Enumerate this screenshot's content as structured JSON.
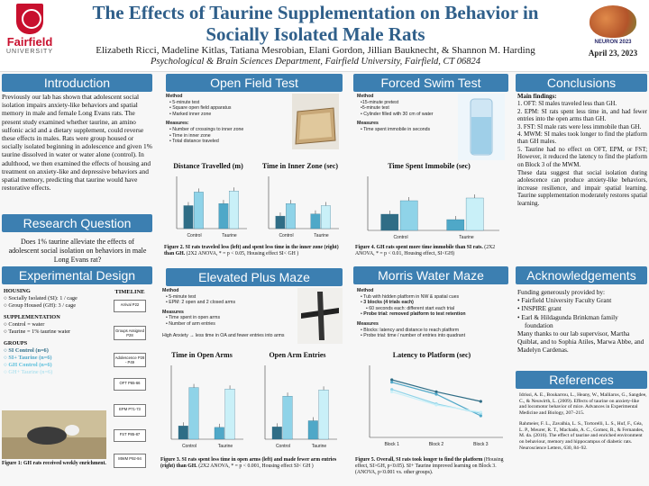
{
  "header": {
    "university": "Fairfield",
    "university_sub": "UNIVERSITY",
    "title": "The Effects of Taurine Supplementation on Behavior in Socially Isolated Male Rats",
    "authors": "Elizabeth Ricci, Madeline Kitlas, Tatiana Mesrobian, Elani Gordon, Jillian Bauknecht, & Shannon M. Harding",
    "department": "Psychological & Brain Sciences Department, Fairfield University, Fairfield, CT 06824",
    "conference": "NEURON 2023",
    "date": "April 23, 2023"
  },
  "introduction": {
    "heading": "Introduction",
    "text": "Previously our lab has shown that adolescent social isolation impairs anxiety-like behaviors and spatial memory in male and female Long Evans rats. The present study examined whether taurine, an amino sulfonic acid and a dietary supplement, could reverse these effects in males. Rats were group housed or socially isolated beginning in adolescence and given 1% taurine dissolved in water or water alone (control). In adulthood, we then examined the effects of housing and treatment on anxiety-like and depressive behaviors and spatial memory, predicting that taurine would have restorative effects."
  },
  "research_question": {
    "heading": "Research Question",
    "text": "Does 1% taurine alleviate the effects of adolescent social isolation on behaviors in male Long Evans rat?"
  },
  "experimental_design": {
    "heading": "Experimental Design",
    "housing_title": "HOUSING",
    "housing": [
      "Socially Isolated (SI): 1 / cage",
      "Group Housed (GH): 3 / cage"
    ],
    "supp_title": "SUPPLEMENTATION",
    "supp": [
      "Control = water",
      "Taurine = 1% taurine water"
    ],
    "groups_title": "GROUPS",
    "groups": [
      "SI Control (n=6)",
      "SI+ Taurine (n=6)",
      "GH Control (n=6)",
      "GH+ Taurine (n=6)"
    ],
    "timeline_title": "TIMELINE",
    "timeline": [
      "Arrival P22",
      "Groups Assigned P28",
      "Adolescence P28 - P49",
      "OFT P65-66",
      "EPM P71-73",
      "FST P85-87",
      "MWM P92-94"
    ],
    "caption": "Figure 1: GH rats received weekly enrichment."
  },
  "open_field": {
    "heading": "Open Field Test",
    "method_title": "Method",
    "method": [
      "5-minute test",
      "Square open field apparatus",
      "Marked inner zone"
    ],
    "measures_title": "Measures:",
    "measures": [
      "Number of crossings to inner zone",
      "Time in inner zone",
      "Total distance traveled"
    ],
    "chart1_title": "Distance Travelled (m)",
    "chart2_title": "Time in Inner Zone (sec)",
    "caption_bold": "Figure 2. SI rats traveled less (left) and spent less time in the inner zone (right) than GH.",
    "caption_rest": " (2X2 ANOVA, * = p < 0.05, Housing effect SI< GH )"
  },
  "forced_swim": {
    "heading": "Forced Swim Test",
    "method_title": "Method",
    "method": [
      "15-minute pretest",
      "5-minute test",
      "Cylinder filled with 30 cm of water"
    ],
    "measures_title": "Measures",
    "measures": [
      "Time spent immobile in seconds"
    ],
    "chart_title": "Time Spent Immobile (sec)",
    "caption_bold": "Figure 4. GH rats spent more time immobile than SI rats.",
    "caption_rest": " (2X2 ANOVA, * = p < 0.01, Housing effect, SI<GH)"
  },
  "conclusions": {
    "heading": "Conclusions",
    "main_title": "Main findings:",
    "findings": [
      "OFT: SI males traveled less than GH.",
      "EPM: SI rats spent less time in, and had fewer entries into the open arms than GH.",
      "FST: SI male rats were less immobile than GH.",
      "MWM: SI males took longer to find the platform than GH males.",
      "Taurine had no effect on OFT, EPM, or FST; However, it reduced the latency to find the platform on Block 3 of the MWM."
    ],
    "summary": "These data suggest that social isolation during adolescence can produce anxiety-like behaviors, increase resilience, and impair spatial learning. Taurine supplementation moderately restores spatial learning."
  },
  "epm": {
    "heading": "Elevated Plus Maze",
    "method_title": "Method",
    "method": [
      "5-minute test",
      "EPM: 2 open and 2 closed arms"
    ],
    "measures_title": "Measures",
    "measures": [
      "Time spent in open arms",
      "Number of arm entries"
    ],
    "note": "High Anxiety → less time in OA and fewer entries into arms",
    "chart1_title": "Time in Open Arms",
    "chart2_title": "Open Arm Entries",
    "caption_bold": "Figure 3. SI rats spent less time in open arms (left) and made fewer arm entries (right) than GH.",
    "caption_rest": " (2X2 ANOVA, * = p < 0.001, Housing effect SI< GH )"
  },
  "mwm": {
    "heading": "Morris Water Maze",
    "method_title": "Method",
    "method": [
      "Tub with hidden platform in NW & spatial cues",
      "3 blocks (4 trials each)",
      "60 seconds each: different start each trial",
      "Probe trial: removed platform to test retention"
    ],
    "measures_title": "Measures",
    "measures": [
      "Blocks: latency and distance to reach platform",
      "Probe trial: time / number of entries into quadrant"
    ],
    "chart_title": "Latency to Platform (sec)",
    "caption_bold": "Figure 5. Overall, SI rats took longer to find the platform",
    "caption_rest": " (Housing effect, SI>GH, p<0.05). SI+ Taurine improved learning on Block 3. (ANOVA, p<0.001 vs. other groups)."
  },
  "acknowledgements": {
    "heading": "Acknowledgements",
    "intro": "Funding generously provided by:",
    "items": [
      "Fairfield University Faculty Grant",
      "INSPIRE grant",
      "Earl & Hildagunda Brinkman family foundation"
    ],
    "thanks": "Many thanks to our lab supervisor, Martha Quiblat, and to Sophia Atiles, Marwa Abbe, and Madelyn Cardenas."
  },
  "references": {
    "heading": "References",
    "items": [
      "Idrissi, A. E., Boukarrou, L., Heany, W., Malliaros, G., Sangdee, C., & Neuwirth, L. (2009). Effects of taurine on anxiety-like and locomotor behavior of mice. Advances in Experimental Medicine and Biology, 207–215.",
      "Rahmeier, F. L., Zavalhia, L. S., Tortorelli, L. S., Huf, F., Géa, L. P., Meurer, R. T., Machado, A. C., Gomez, R., & Fernandes, M. da. (2016). The effect of taurine and enriched environment on behaviour, memory and hippocampus of diabetic rats. Neuroscience Letters, 630, 84–92."
    ]
  },
  "colors": {
    "header_blue": "#3c7fb1",
    "title_blue": "#2f5f8a",
    "si_control": "#2f6d86",
    "si_taurine": "#4fa8c8",
    "gh_control": "#8fd3e8",
    "gh_taurine": "#c9f0f8"
  },
  "chart_data": [
    {
      "type": "bar",
      "title": "Distance Travelled (m)",
      "categories": [
        "Control",
        "Taurine"
      ],
      "series": [
        {
          "values": [
            22,
            24
          ]
        },
        {
          "values": [
            35,
            36
          ]
        }
      ],
      "ylim": [
        0,
        50
      ]
    },
    {
      "type": "bar",
      "title": "Time in Inner Zone (sec)",
      "categories": [
        "Control",
        "Taurine"
      ],
      "series": [
        {
          "values": [
            6,
            7
          ]
        },
        {
          "values": [
            12,
            11
          ]
        }
      ],
      "ylim": [
        0,
        25
      ]
    },
    {
      "type": "bar",
      "title": "Time Spent Immobile (sec)",
      "categories": [
        "Control",
        "Taurine"
      ],
      "series": [
        {
          "values": [
            60,
            40
          ]
        },
        {
          "values": [
            110,
            120
          ]
        }
      ],
      "ylim": [
        0,
        200
      ]
    },
    {
      "type": "bar",
      "title": "Time in Open Arms",
      "categories": [
        "Control",
        "Taurine"
      ],
      "series": [
        {
          "values": [
            18,
            16
          ]
        },
        {
          "values": [
            70,
            68
          ]
        }
      ],
      "ylim": [
        0,
        100
      ]
    },
    {
      "type": "bar",
      "title": "Open Arm Entries",
      "categories": [
        "Control",
        "Taurine"
      ],
      "series": [
        {
          "values": [
            2,
            3
          ]
        },
        {
          "values": [
            7,
            8
          ]
        }
      ],
      "ylim": [
        0,
        12
      ]
    },
    {
      "type": "line",
      "title": "Latency to Platform (sec)",
      "x": [
        "Block 1",
        "Block 2",
        "Block 3"
      ],
      "series": [
        {
          "values": [
            48,
            38,
            30
          ]
        },
        {
          "values": [
            46,
            36,
            18
          ]
        },
        {
          "values": [
            40,
            28,
            20
          ]
        },
        {
          "values": [
            38,
            27,
            21
          ]
        }
      ],
      "ylim": [
        0,
        60
      ]
    }
  ]
}
